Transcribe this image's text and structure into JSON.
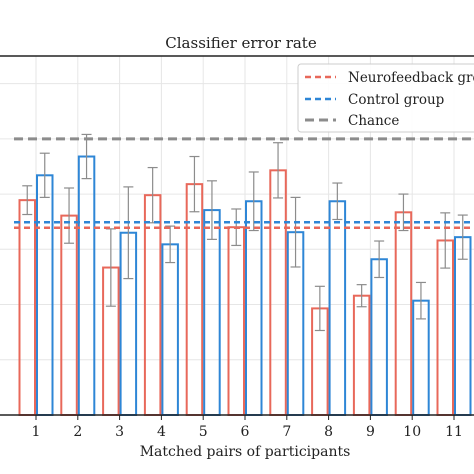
{
  "chart_data": {
    "type": "bar",
    "title": "Classifier error rate",
    "xlabel": "Matched pairs of participants",
    "ylabel": "",
    "categories": [
      "1",
      "2",
      "3",
      "4",
      "5",
      "6",
      "7",
      "8",
      "9",
      "10",
      "11"
    ],
    "ylim": [
      0,
      0.65
    ],
    "grid": true,
    "legend_position": "top-right",
    "series": [
      {
        "name": "Neurofeedback group",
        "color": "#e8685a",
        "values": [
          0.389,
          0.361,
          0.267,
          0.398,
          0.418,
          0.34,
          0.443,
          0.193,
          0.216,
          0.367,
          0.316
        ],
        "errors": [
          0.026,
          0.05,
          0.07,
          0.05,
          0.05,
          0.033,
          0.05,
          0.04,
          0.02,
          0.033,
          0.05
        ]
      },
      {
        "name": "Control group",
        "color": "#2e86d6",
        "values": [
          0.434,
          0.468,
          0.33,
          0.309,
          0.371,
          0.387,
          0.331,
          0.387,
          0.282,
          0.207,
          0.322
        ],
        "errors": [
          0.04,
          0.04,
          0.083,
          0.033,
          0.053,
          0.053,
          0.063,
          0.033,
          0.033,
          0.033,
          0.04
        ]
      }
    ],
    "reference_lines": [
      {
        "name": "Neurofeedback group",
        "value": 0.339,
        "color": "#e8685a",
        "style": "dashed"
      },
      {
        "name": "Control group",
        "value": 0.349,
        "color": "#2e86d6",
        "style": "dashed"
      },
      {
        "name": "Chance",
        "value": 0.5,
        "color": "#8c8c8c",
        "style": "dashed"
      }
    ]
  }
}
